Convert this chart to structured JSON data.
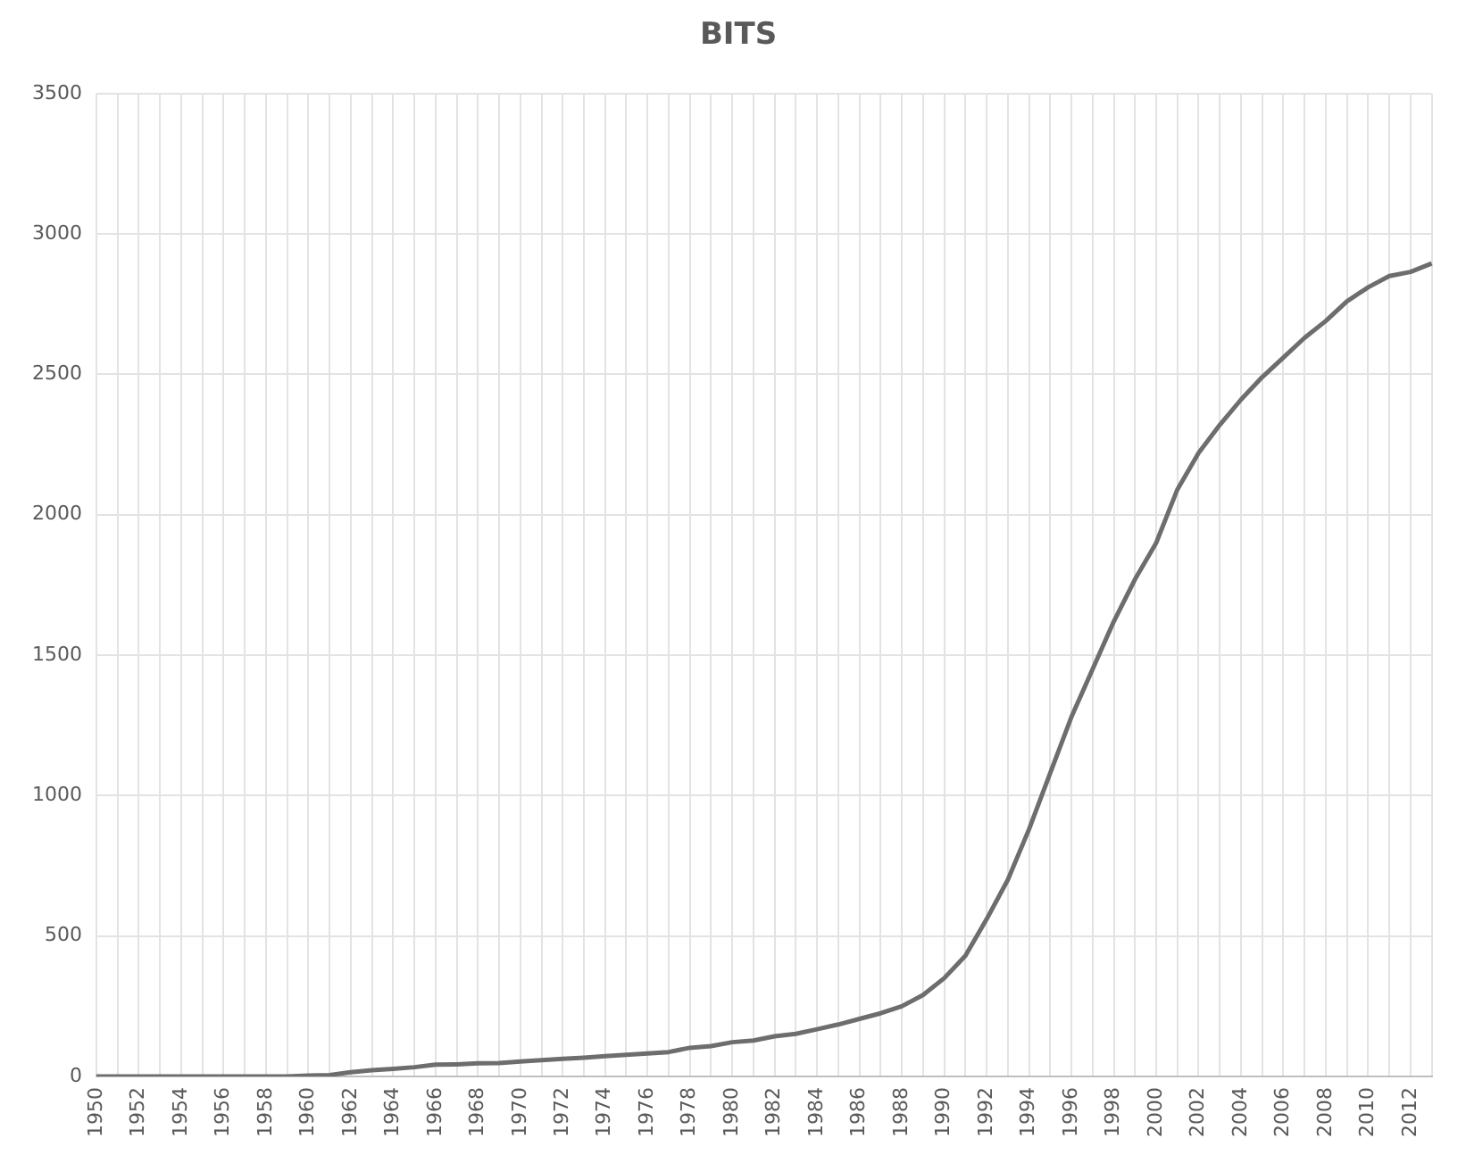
{
  "chart_data": {
    "type": "line",
    "title": "BITS",
    "categories": [
      "1950",
      null,
      "1952",
      null,
      "1954",
      null,
      "1956",
      null,
      "1958",
      null,
      "1960",
      null,
      "1962",
      null,
      "1964",
      null,
      "1966",
      null,
      "1968",
      null,
      "1970",
      null,
      "1972",
      null,
      "1974",
      null,
      "1976",
      null,
      "1978",
      null,
      "1980",
      null,
      "1982",
      null,
      "1984",
      null,
      "1986",
      null,
      "1988",
      null,
      "1990",
      null,
      "1992",
      null,
      "1994",
      null,
      "1996",
      null,
      "1998",
      null,
      "2000",
      null,
      "2002",
      null,
      "2004",
      null,
      "2006",
      null,
      "2008",
      null,
      "2010",
      null,
      "2012",
      null
    ],
    "series": [
      {
        "color": "#6d6d6d",
        "values": [
          0,
          0,
          0,
          0,
          0,
          0,
          0,
          0,
          0,
          0,
          3,
          5,
          15,
          22,
          27,
          33,
          42,
          43,
          47,
          48,
          53,
          58,
          63,
          67,
          72,
          77,
          82,
          87,
          102,
          108,
          122,
          128,
          143,
          152,
          168,
          185,
          205,
          225,
          250,
          290,
          350,
          430,
          560,
          700,
          880,
          1080,
          1280,
          1450,
          1620,
          1770,
          1900,
          2090,
          2220,
          2320,
          2410,
          2490,
          2560,
          2630,
          2690,
          2760,
          2810,
          2850,
          2865,
          2895
        ]
      }
    ],
    "ylim": [
      0,
      3500
    ],
    "yticks": [
      0,
      500,
      1000,
      1500,
      2000,
      2500,
      3000,
      3500
    ],
    "grid": true,
    "legend": false,
    "marker": "none",
    "line_style": "solid"
  }
}
